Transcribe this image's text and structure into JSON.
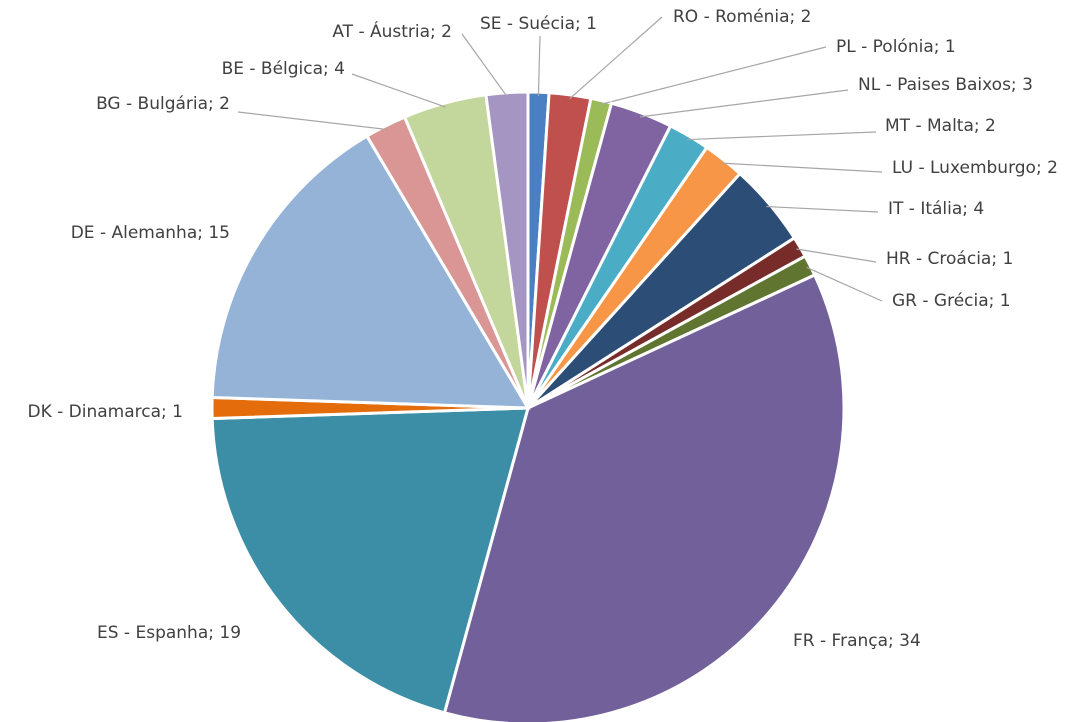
{
  "chart_data": {
    "type": "pie",
    "values": [
      1,
      2,
      1,
      3,
      2,
      2,
      4,
      1,
      1,
      34,
      19,
      1,
      15,
      2,
      4,
      2
    ],
    "value_labels": [
      "SE - Suécia; 1",
      "RO - Roménia; 2",
      "PL - Polónia; 1",
      "NL - Paises Baixos; 3",
      "MT - Malta; 2",
      "LU - Luxemburgo; 2",
      "IT - Itália; 4",
      "HR - Croácia; 1",
      "GR - Grécia; 1",
      "FR - França; 34",
      "ES - Espanha; 19",
      "DK - Dinamarca; 1",
      "DE - Alemanha; 15",
      "BG - Bulgária; 2",
      "BE - Bélgica; 4",
      "AT - Áustria; 2"
    ],
    "colors": [
      "#4a7fc1",
      "#c0504d",
      "#9bbb59",
      "#8064a2",
      "#4bacc6",
      "#f79646",
      "#2c4d75",
      "#772c2a",
      "#5f7530",
      "#72609a",
      "#3b8ea6",
      "#e46c0a",
      "#95b3d7",
      "#d99694",
      "#c3d69b",
      "#a495c2"
    ]
  }
}
